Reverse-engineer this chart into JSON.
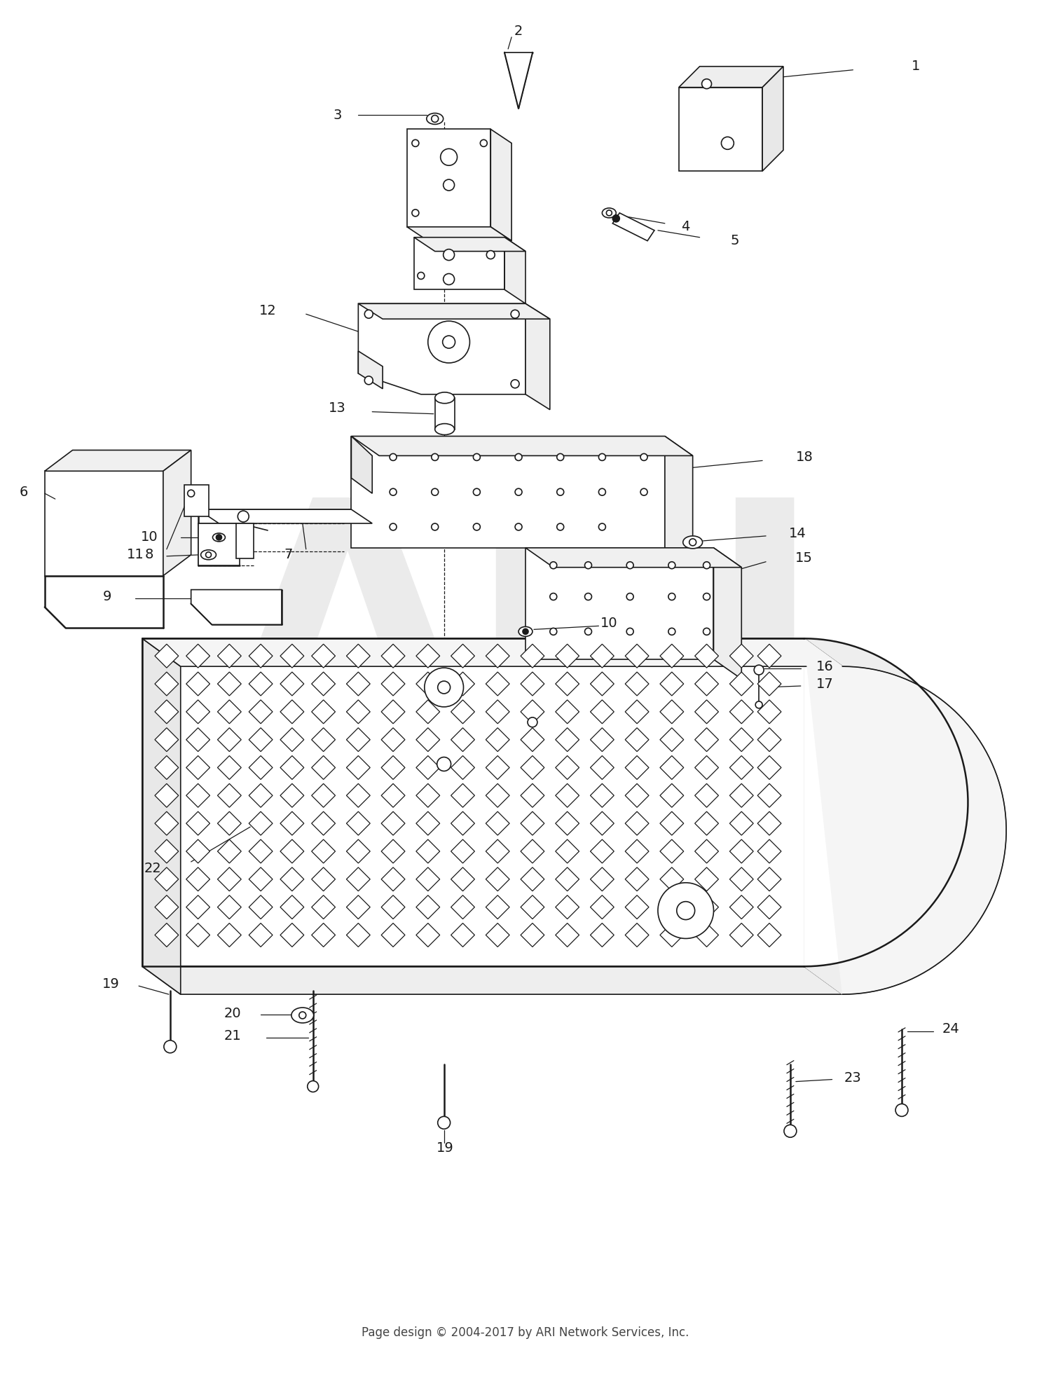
{
  "background_color": "#ffffff",
  "line_color": "#1a1a1a",
  "footer_text": "Page design © 2004-2017 by ARI Network Services, Inc.",
  "label_fontsize": 14,
  "footer_fontsize": 12,
  "watermark_text": "ARI",
  "fig_width": 15.0,
  "fig_height": 19.61,
  "dpi": 100
}
